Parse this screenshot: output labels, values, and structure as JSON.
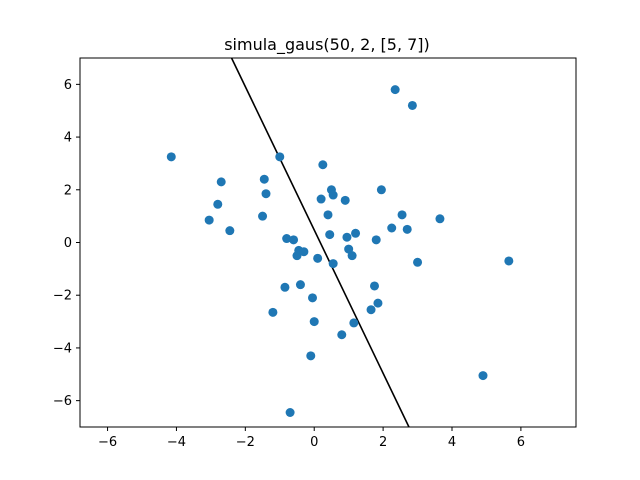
{
  "chart_data": {
    "type": "scatter",
    "title": "simula_gaus(50, 2, [5, 7])",
    "xlabel": "",
    "ylabel": "",
    "xlim": [
      -6.8,
      7.6
    ],
    "ylim": [
      -7,
      7
    ],
    "xticks": [
      -6,
      -4,
      -2,
      0,
      2,
      4,
      6
    ],
    "yticks": [
      -6,
      -4,
      -2,
      0,
      2,
      4,
      6
    ],
    "grid": false,
    "point_color": "#1f77b4",
    "line_color": "#000000",
    "points": [
      {
        "x": -4.15,
        "y": 3.25
      },
      {
        "x": -3.05,
        "y": 0.85
      },
      {
        "x": -2.8,
        "y": 1.45
      },
      {
        "x": -2.7,
        "y": 2.3
      },
      {
        "x": -2.45,
        "y": 0.45
      },
      {
        "x": -1.5,
        "y": 1.0
      },
      {
        "x": -1.45,
        "y": 2.4
      },
      {
        "x": -1.4,
        "y": 1.85
      },
      {
        "x": -1.2,
        "y": -2.65
      },
      {
        "x": -1.0,
        "y": 3.25
      },
      {
        "x": -0.8,
        "y": 0.15
      },
      {
        "x": -0.85,
        "y": -1.7
      },
      {
        "x": -0.7,
        "y": -6.45
      },
      {
        "x": -0.6,
        "y": 0.1
      },
      {
        "x": -0.5,
        "y": -0.5
      },
      {
        "x": -0.45,
        "y": -0.3
      },
      {
        "x": -0.4,
        "y": -1.6
      },
      {
        "x": -0.3,
        "y": -0.35
      },
      {
        "x": -0.05,
        "y": -2.1
      },
      {
        "x": -0.1,
        "y": -4.3
      },
      {
        "x": 0.0,
        "y": -3.0
      },
      {
        "x": 0.1,
        "y": -0.6
      },
      {
        "x": 0.2,
        "y": 1.65
      },
      {
        "x": 0.25,
        "y": 2.95
      },
      {
        "x": 0.4,
        "y": 1.05
      },
      {
        "x": 0.45,
        "y": 0.3
      },
      {
        "x": 0.5,
        "y": 2.0
      },
      {
        "x": 0.55,
        "y": 1.8
      },
      {
        "x": 0.55,
        "y": -0.8
      },
      {
        "x": 0.8,
        "y": -3.5
      },
      {
        "x": 0.9,
        "y": 1.6
      },
      {
        "x": 0.95,
        "y": 0.2
      },
      {
        "x": 1.0,
        "y": -0.25
      },
      {
        "x": 1.1,
        "y": -0.5
      },
      {
        "x": 1.15,
        "y": -3.05
      },
      {
        "x": 1.2,
        "y": 0.35
      },
      {
        "x": 1.65,
        "y": -2.55
      },
      {
        "x": 1.75,
        "y": -1.65
      },
      {
        "x": 1.8,
        "y": 0.1
      },
      {
        "x": 1.85,
        "y": -2.3
      },
      {
        "x": 1.95,
        "y": 2.0
      },
      {
        "x": 2.25,
        "y": 0.55
      },
      {
        "x": 2.35,
        "y": 5.8
      },
      {
        "x": 2.55,
        "y": 1.05
      },
      {
        "x": 2.7,
        "y": 0.5
      },
      {
        "x": 2.85,
        "y": 5.2
      },
      {
        "x": 3.0,
        "y": -0.75
      },
      {
        "x": 3.65,
        "y": 0.9
      },
      {
        "x": 4.9,
        "y": -5.05
      },
      {
        "x": 5.65,
        "y": -0.7
      }
    ],
    "line": {
      "x": [
        -2.4,
        2.75
      ],
      "y": [
        7,
        -7
      ]
    }
  }
}
